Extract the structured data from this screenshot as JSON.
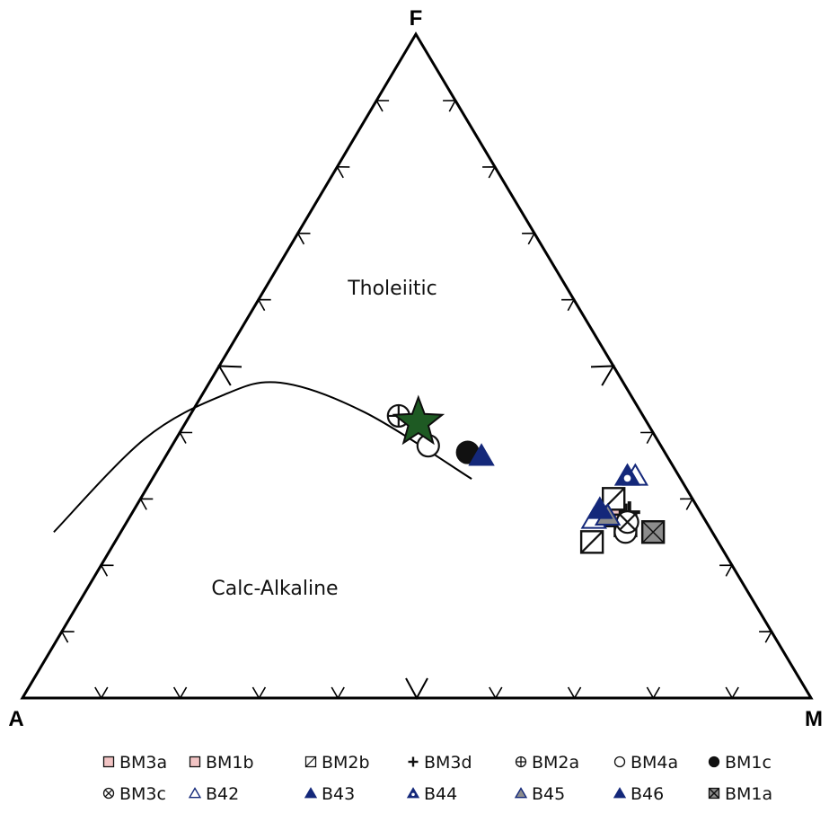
{
  "chart_data": {
    "type": "scatter",
    "subtype": "ternary",
    "vertices": {
      "top": "F",
      "left": "A",
      "right": "M"
    },
    "region_labels": [
      "Tholeiitic",
      "Calc-Alkaline"
    ],
    "grid": false,
    "legend_position": "bottom",
    "colors": {
      "green_star": "#1e5a23",
      "navy": "#14287a",
      "gray": "#8c8c8c",
      "pink": "#f2c4c4"
    },
    "boundary_curve": [
      {
        "A": 83.5,
        "F": 25.0,
        "M": -8.5
      },
      {
        "A": 65.0,
        "F": 39.0,
        "M": -4.0
      },
      {
        "A": 52.0,
        "F": 45.5,
        "M": 2.5
      },
      {
        "A": 43.5,
        "F": 47.5,
        "M": 9.0
      },
      {
        "A": 35.0,
        "F": 43.0,
        "M": 22.0
      },
      {
        "A": 26.5,
        "F": 33.0,
        "M": 40.5
      }
    ],
    "series": [
      {
        "name": "BM3a",
        "marker": "square",
        "fill": "#f2c4c4",
        "points": [
          {
            "A": 11.0,
            "F": 27.5,
            "M": 61.5
          }
        ]
      },
      {
        "name": "BM1b",
        "marker": "square",
        "fill": "#f2c4c4",
        "points": [
          {
            "A": 10.5,
            "F": 26.0,
            "M": 63.5
          }
        ]
      },
      {
        "name": "BM2b",
        "marker": "square-slash",
        "fill": "#ffffff",
        "points": [
          {
            "A": 16.0,
            "F": 23.5,
            "M": 60.5
          },
          {
            "A": 10.0,
            "F": 30.0,
            "M": 60.0
          }
        ]
      },
      {
        "name": "BM3d",
        "marker": "plus",
        "fill": "#ffffff",
        "points": [
          {
            "A": 9.0,
            "F": 28.0,
            "M": 63.0
          }
        ]
      },
      {
        "name": "BM2a",
        "marker": "circle-plus",
        "fill": "#ffffff",
        "points": [
          {
            "A": 31.0,
            "F": 42.5,
            "M": 26.5
          }
        ]
      },
      {
        "name": "BM4a",
        "marker": "circle",
        "fill": "#ffffff",
        "points": [
          {
            "A": 29.5,
            "F": 38.0,
            "M": 32.5
          },
          {
            "A": 11.0,
            "F": 25.0,
            "M": 64.0
          }
        ]
      },
      {
        "name": "BM1c",
        "marker": "circle",
        "fill": "#111111",
        "points": [
          {
            "A": 25.0,
            "F": 37.0,
            "M": 38.0
          }
        ]
      },
      {
        "name": "BM3c",
        "marker": "circle-x",
        "fill": "#ffffff",
        "points": [
          {
            "A": 10.0,
            "F": 26.5,
            "M": 63.5
          }
        ]
      },
      {
        "name": "B42",
        "marker": "triangle-open",
        "fill": "#ffffff",
        "points": [
          {
            "A": 5.5,
            "F": 33.5,
            "M": 61.0
          },
          {
            "A": 14.0,
            "F": 27.0,
            "M": 59.0
          }
        ]
      },
      {
        "name": "B43",
        "marker": "triangle",
        "fill": "#14287a",
        "points": [
          {
            "A": 23.5,
            "F": 36.5,
            "M": 40.0
          }
        ]
      },
      {
        "name": "B44",
        "marker": "triangle-dot",
        "fill": "#14287a",
        "points": [
          {
            "A": 6.5,
            "F": 33.5,
            "M": 60.0
          }
        ]
      },
      {
        "name": "B45",
        "marker": "triangle-gray",
        "fill": "#8c8c8c",
        "points": [
          {
            "A": 12.0,
            "F": 27.5,
            "M": 60.5
          }
        ]
      },
      {
        "name": "B46",
        "marker": "triangle",
        "fill": "#14287a",
        "points": [
          {
            "A": 12.5,
            "F": 28.5,
            "M": 59.0
          }
        ]
      },
      {
        "name": "BM1a",
        "marker": "square-x",
        "fill": "#8c8c8c",
        "points": [
          {
            "A": 7.5,
            "F": 25.0,
            "M": 67.5
          }
        ]
      },
      {
        "name": "",
        "marker": "star",
        "fill": "#1e5a23",
        "points": [
          {
            "A": 29.0,
            "F": 41.5,
            "M": 29.5
          }
        ]
      }
    ]
  }
}
